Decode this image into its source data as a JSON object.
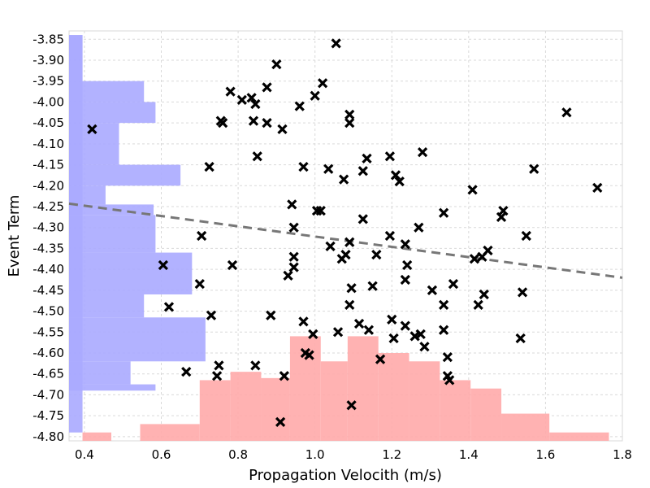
{
  "chart_data": {
    "type": "scatter",
    "title": "",
    "xlabel": "Propagation Velocith (m/s)",
    "ylabel": "Event Term",
    "xlim": [
      0.36,
      1.8
    ],
    "ylim": [
      -4.81,
      -3.83
    ],
    "x_ticks": [
      "0.4",
      "0.6",
      "0.8",
      "1.0",
      "1.2",
      "1.4",
      "1.6",
      "1.8"
    ],
    "y_ticks": [
      "-3.85",
      "-3.90",
      "-3.95",
      "-4.00",
      "-4.05",
      "-4.10",
      "-4.15",
      "-4.20",
      "-4.25",
      "-4.30",
      "-4.35",
      "-4.40",
      "-4.45",
      "-4.50",
      "-4.55",
      "-4.60",
      "-4.65",
      "-4.70",
      "-4.75",
      "-4.80"
    ],
    "grid": true,
    "marker": "x",
    "points": [
      [
        0.42,
        -4.065
      ],
      [
        0.605,
        -4.39
      ],
      [
        0.62,
        -4.49
      ],
      [
        0.665,
        -4.645
      ],
      [
        0.7,
        -4.435
      ],
      [
        0.705,
        -4.32
      ],
      [
        0.725,
        -4.155
      ],
      [
        0.73,
        -4.51
      ],
      [
        0.745,
        -4.655
      ],
      [
        0.75,
        -4.63
      ],
      [
        0.755,
        -4.045
      ],
      [
        0.76,
        -4.05
      ],
      [
        0.78,
        -3.975
      ],
      [
        0.785,
        -4.39
      ],
      [
        0.81,
        -3.995
      ],
      [
        0.835,
        -3.99
      ],
      [
        0.84,
        -4.045
      ],
      [
        0.845,
        -4.005
      ],
      [
        0.845,
        -4.63
      ],
      [
        0.85,
        -4.13
      ],
      [
        0.875,
        -3.965
      ],
      [
        0.875,
        -4.05
      ],
      [
        0.885,
        -4.51
      ],
      [
        0.9,
        -3.91
      ],
      [
        0.91,
        -4.765
      ],
      [
        0.915,
        -4.065
      ],
      [
        0.92,
        -4.655
      ],
      [
        0.93,
        -4.415
      ],
      [
        0.94,
        -4.245
      ],
      [
        0.945,
        -4.3
      ],
      [
        0.945,
        -4.37
      ],
      [
        0.945,
        -4.395
      ],
      [
        0.96,
        -4.01
      ],
      [
        0.97,
        -4.155
      ],
      [
        0.97,
        -4.525
      ],
      [
        0.975,
        -4.6
      ],
      [
        0.985,
        -4.605
      ],
      [
        0.995,
        -4.555
      ],
      [
        1.0,
        -3.985
      ],
      [
        1.005,
        -4.26
      ],
      [
        1.015,
        -4.26
      ],
      [
        1.02,
        -3.955
      ],
      [
        1.035,
        -4.16
      ],
      [
        1.04,
        -4.345
      ],
      [
        1.055,
        -3.86
      ],
      [
        1.06,
        -4.55
      ],
      [
        1.07,
        -4.375
      ],
      [
        1.075,
        -4.185
      ],
      [
        1.08,
        -4.365
      ],
      [
        1.09,
        -4.03
      ],
      [
        1.09,
        -4.05
      ],
      [
        1.09,
        -4.335
      ],
      [
        1.09,
        -4.485
      ],
      [
        1.095,
        -4.445
      ],
      [
        1.095,
        -4.725
      ],
      [
        1.115,
        -4.53
      ],
      [
        1.125,
        -4.165
      ],
      [
        1.125,
        -4.28
      ],
      [
        1.135,
        -4.135
      ],
      [
        1.14,
        -4.545
      ],
      [
        1.15,
        -4.44
      ],
      [
        1.16,
        -4.365
      ],
      [
        1.17,
        -4.615
      ],
      [
        1.195,
        -4.13
      ],
      [
        1.195,
        -4.32
      ],
      [
        1.2,
        -4.52
      ],
      [
        1.205,
        -4.565
      ],
      [
        1.21,
        -4.175
      ],
      [
        1.22,
        -4.19
      ],
      [
        1.235,
        -4.34
      ],
      [
        1.235,
        -4.425
      ],
      [
        1.235,
        -4.535
      ],
      [
        1.24,
        -4.39
      ],
      [
        1.26,
        -4.56
      ],
      [
        1.27,
        -4.3
      ],
      [
        1.275,
        -4.555
      ],
      [
        1.28,
        -4.12
      ],
      [
        1.285,
        -4.585
      ],
      [
        1.305,
        -4.45
      ],
      [
        1.335,
        -4.265
      ],
      [
        1.335,
        -4.485
      ],
      [
        1.335,
        -4.545
      ],
      [
        1.345,
        -4.61
      ],
      [
        1.345,
        -4.655
      ],
      [
        1.35,
        -4.665
      ],
      [
        1.36,
        -4.435
      ],
      [
        1.41,
        -4.21
      ],
      [
        1.415,
        -4.375
      ],
      [
        1.425,
        -4.485
      ],
      [
        1.435,
        -4.37
      ],
      [
        1.44,
        -4.46
      ],
      [
        1.45,
        -4.355
      ],
      [
        1.485,
        -4.275
      ],
      [
        1.49,
        -4.26
      ],
      [
        1.535,
        -4.565
      ],
      [
        1.54,
        -4.455
      ],
      [
        1.55,
        -4.32
      ],
      [
        1.57,
        -4.16
      ],
      [
        1.655,
        -4.025
      ],
      [
        1.735,
        -4.205
      ]
    ],
    "trend_line": {
      "style": "dashed",
      "color": "#777777",
      "from": [
        0.36,
        -4.243
      ],
      "to": [
        1.8,
        -4.42
      ]
    },
    "y_histogram": {
      "color": "#aaaaff",
      "bins": [
        [
          -4.79,
          -3.84,
          0.395
        ],
        [
          -3.84,
          -3.95,
          0.395
        ],
        [
          -3.95,
          -4.0,
          0.555
        ],
        [
          -4.0,
          -4.05,
          0.585
        ],
        [
          -4.05,
          -4.15,
          0.49
        ],
        [
          -4.15,
          -4.2,
          0.65
        ],
        [
          -4.2,
          -4.245,
          0.455
        ],
        [
          -4.245,
          -4.27,
          0.58
        ],
        [
          -4.27,
          -4.36,
          0.585
        ],
        [
          -4.36,
          -4.46,
          0.68
        ],
        [
          -4.46,
          -4.515,
          0.555
        ],
        [
          -4.515,
          -4.62,
          0.715
        ],
        [
          -4.62,
          -4.675,
          0.52
        ],
        [
          -4.675,
          -4.69,
          0.585
        ]
      ]
    },
    "x_histogram": {
      "color": "#ffaaaa",
      "bins": [
        [
          0.395,
          0.47,
          -4.79
        ],
        [
          0.545,
          0.7,
          -4.77
        ],
        [
          0.7,
          0.78,
          -4.665
        ],
        [
          0.78,
          0.86,
          -4.645
        ],
        [
          0.86,
          0.935,
          -4.66
        ],
        [
          0.935,
          1.015,
          -4.56
        ],
        [
          1.015,
          1.085,
          -4.62
        ],
        [
          1.085,
          1.165,
          -4.56
        ],
        [
          1.165,
          1.245,
          -4.6
        ],
        [
          1.245,
          1.325,
          -4.62
        ],
        [
          1.325,
          1.405,
          -4.665
        ],
        [
          1.405,
          1.485,
          -4.685
        ],
        [
          1.485,
          1.61,
          -4.745
        ],
        [
          1.61,
          1.765,
          -4.79
        ]
      ]
    }
  }
}
